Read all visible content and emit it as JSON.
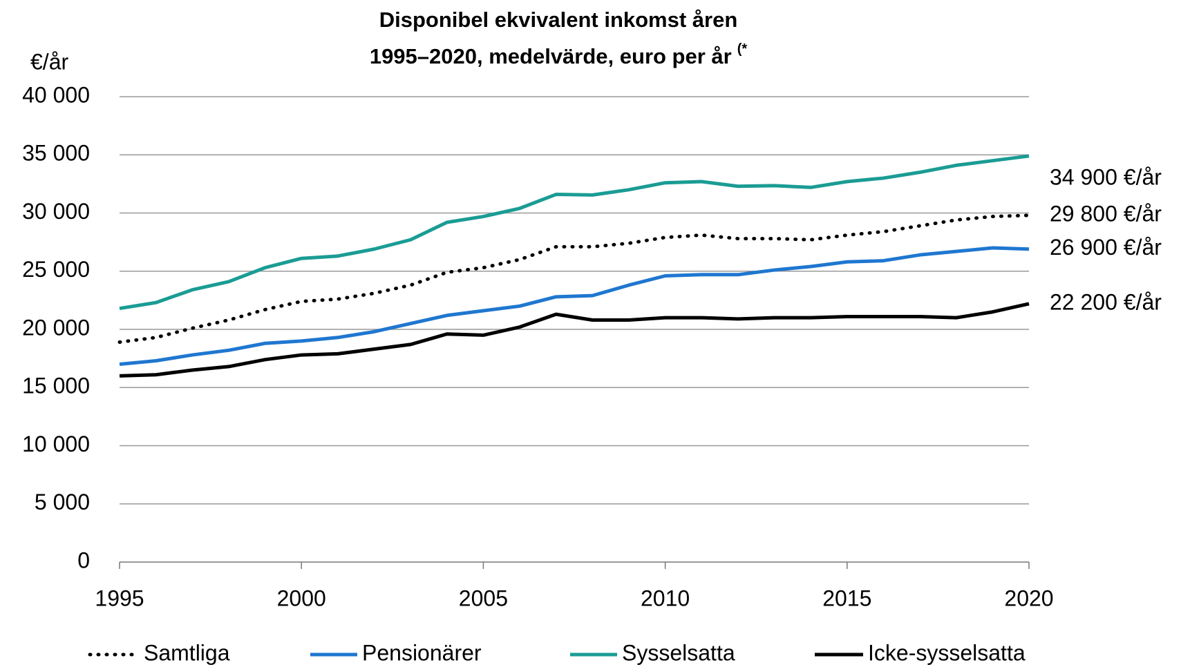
{
  "chart_data": {
    "type": "line",
    "title": [
      "Disponibel ekvivalent inkomst åren",
      "1995–2020, medelvärde, euro per år"
    ],
    "title_note": "(*",
    "y_label": "€/år",
    "x": [
      1995,
      1996,
      1997,
      1998,
      1999,
      2000,
      2001,
      2002,
      2003,
      2004,
      2005,
      2006,
      2007,
      2008,
      2009,
      2010,
      2011,
      2012,
      2013,
      2014,
      2015,
      2016,
      2017,
      2018,
      2019,
      2020
    ],
    "series": [
      {
        "name": "Samtliga",
        "color": "#000000",
        "dashed": true,
        "values": [
          18900,
          19300,
          20100,
          20800,
          21700,
          22400,
          22600,
          23100,
          23800,
          24900,
          25300,
          26000,
          27100,
          27100,
          27400,
          27900,
          28100,
          27800,
          27800,
          27700,
          28100,
          28400,
          28900,
          29400,
          29700,
          29800
        ]
      },
      {
        "name": "Pensionärer",
        "color": "#1f77d0",
        "values": [
          17000,
          17300,
          17800,
          18200,
          18800,
          19000,
          19300,
          19800,
          20500,
          21200,
          21600,
          22000,
          22800,
          22900,
          23800,
          24600,
          24700,
          24700,
          25100,
          25400,
          25800,
          25900,
          26400,
          26700,
          27000,
          26900
        ]
      },
      {
        "name": "Sysselsatta",
        "color": "#1a9c94",
        "values": [
          21800,
          22300,
          23400,
          24100,
          25300,
          26100,
          26300,
          26900,
          27700,
          29200,
          29700,
          30400,
          31600,
          31550,
          32000,
          32600,
          32700,
          32300,
          32350,
          32200,
          32700,
          33000,
          33500,
          34100,
          34500,
          34900
        ]
      },
      {
        "name": "Icke-sysselsatta",
        "color": "#000000",
        "values": [
          16000,
          16100,
          16500,
          16800,
          17400,
          17800,
          17900,
          18300,
          18700,
          19600,
          19500,
          20200,
          21300,
          20800,
          20800,
          21000,
          21000,
          20900,
          21000,
          21000,
          21100,
          21100,
          21100,
          21000,
          21500,
          22200
        ]
      }
    ],
    "annotations": [
      {
        "text": "34 900 €/år",
        "value": 34900
      },
      {
        "text": "29 800 €/år",
        "value": 29800
      },
      {
        "text": "26 900 €/år",
        "value": 26900
      },
      {
        "text": "22 200 €/år",
        "value": 22200
      }
    ],
    "xlim": [
      1995,
      2020
    ],
    "xticks": [
      1995,
      2000,
      2005,
      2010,
      2015,
      2020
    ],
    "ylim": [
      0,
      40000
    ],
    "yticks": [
      0,
      {
        "value": 5000,
        "label": "5 000"
      },
      {
        "value": 10000,
        "label": "10 000"
      },
      {
        "value": 15000,
        "label": "15 000"
      },
      {
        "value": 20000,
        "label": "20 000"
      },
      {
        "value": 25000,
        "label": "25 000"
      },
      {
        "value": 30000,
        "label": "30 000"
      },
      {
        "value": 35000,
        "label": "35 000"
      },
      {
        "value": 40000,
        "label": "40 000"
      }
    ],
    "grid": true
  }
}
